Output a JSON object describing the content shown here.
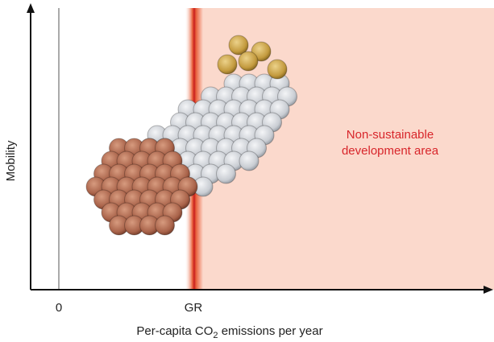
{
  "axes": {
    "y_label": "Mobility",
    "x_label": "Per-capita CO",
    "x_label_sub": "2",
    "x_label_rest": " emissions per year",
    "x_ticks": [
      "0",
      "GR"
    ]
  },
  "annotation": [
    "Non-sustainable",
    "development area"
  ]
}
